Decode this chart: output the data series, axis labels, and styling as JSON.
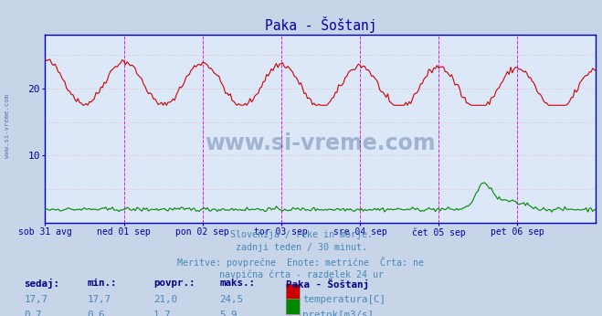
{
  "title": "Paka - Šoštanj",
  "title_color": "#0000aa",
  "bg_color": "#c8d4e8",
  "plot_bg_color": "#dce8f8",
  "grid_h_color": "#e8b8b8",
  "grid_v_color": "#e8b8b8",
  "axis_color": "#0000cc",
  "tick_color": "#0000aa",
  "temp_color": "#cc0000",
  "flow_color": "#008800",
  "vline_color": "#dd00dd",
  "xlim": [
    0,
    336
  ],
  "ylim": [
    0,
    28
  ],
  "yticks": [
    10,
    20
  ],
  "ytick_labels": [
    "10",
    "20"
  ],
  "x_tick_positions": [
    0,
    48,
    96,
    144,
    192,
    240,
    288
  ],
  "x_tick_labels": [
    "sob 31 avg",
    "ned 01 sep",
    "pon 02 sep",
    "tor 03 sep",
    "sre 04 sep",
    "čet 05 sep",
    "pet 06 sep"
  ],
  "vline_positions": [
    48,
    96,
    144,
    192,
    240,
    288,
    336
  ],
  "subtitle_lines": [
    "Slovenija / reke in morje.",
    "zadnji teden / 30 minut.",
    "Meritve: povprečne  Enote: metrične  Črta: ne",
    "navpična črta - razdelek 24 ur"
  ],
  "table_headers": [
    "sedaj:",
    "min.:",
    "povpr.:",
    "maks.:",
    "Paka - Šoštanj"
  ],
  "table_row1_vals": [
    "17,7",
    "17,7",
    "21,0",
    "24,5"
  ],
  "table_row1_label": "temperatura[C]",
  "table_row1_color": "#cc0000",
  "table_row2_vals": [
    "0,7",
    "0,6",
    "1,7",
    "5,9"
  ],
  "table_row2_label": "pretok[m3/s]",
  "table_row2_color": "#008800",
  "watermark_text": "www.si-vreme.com",
  "watermark_color": "#1a3a7a",
  "left_label_color": "#4466aa",
  "subtitle_color": "#4488bb",
  "table_header_color": "#000088",
  "table_val_color": "#4488bb"
}
